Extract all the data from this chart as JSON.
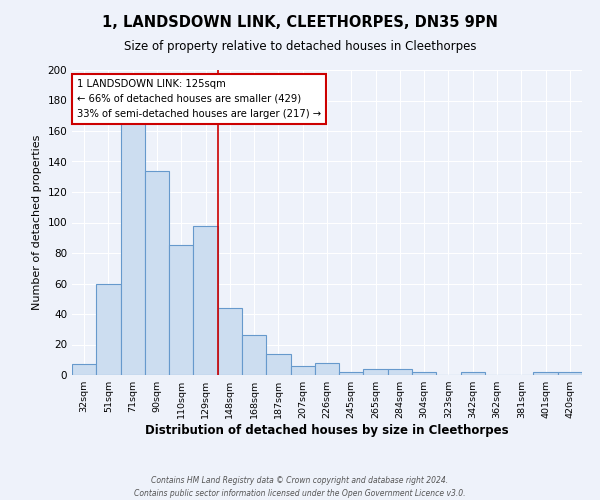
{
  "title": "1, LANDSDOWN LINK, CLEETHORPES, DN35 9PN",
  "subtitle": "Size of property relative to detached houses in Cleethorpes",
  "xlabel": "Distribution of detached houses by size in Cleethorpes",
  "ylabel": "Number of detached properties",
  "footnote1": "Contains HM Land Registry data © Crown copyright and database right 2024.",
  "footnote2": "Contains public sector information licensed under the Open Government Licence v3.0.",
  "categories": [
    "32sqm",
    "51sqm",
    "71sqm",
    "90sqm",
    "110sqm",
    "129sqm",
    "148sqm",
    "168sqm",
    "187sqm",
    "207sqm",
    "226sqm",
    "245sqm",
    "265sqm",
    "284sqm",
    "304sqm",
    "323sqm",
    "342sqm",
    "362sqm",
    "381sqm",
    "401sqm",
    "420sqm"
  ],
  "values": [
    7,
    60,
    168,
    134,
    85,
    98,
    44,
    26,
    14,
    6,
    8,
    2,
    4,
    4,
    2,
    0,
    2,
    0,
    0,
    2,
    2
  ],
  "bar_color": "#ccddf0",
  "bar_edge_color": "#6699cc",
  "background_color": "#eef2fa",
  "grid_color": "#ffffff",
  "vline_x": 5.5,
  "vline_color": "#cc0000",
  "annotation_text": "1 LANDSDOWN LINK: 125sqm\n← 66% of detached houses are smaller (429)\n33% of semi-detached houses are larger (217) →",
  "annotation_box_color": "#ffffff",
  "annotation_box_edge": "#cc0000",
  "ylim": [
    0,
    200
  ],
  "yticks": [
    0,
    20,
    40,
    60,
    80,
    100,
    120,
    140,
    160,
    180,
    200
  ]
}
